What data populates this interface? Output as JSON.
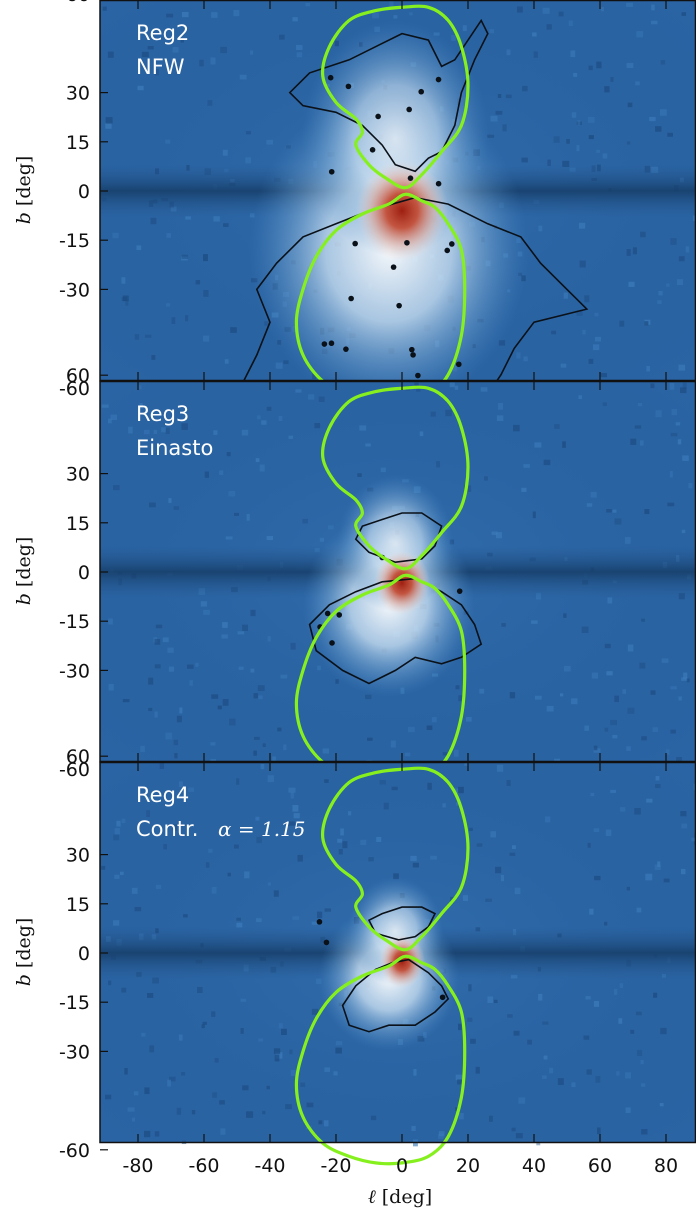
{
  "chart_data": {
    "type": "heatmap",
    "x_axis": {
      "label_italic": "ℓ",
      "label_unit": "[deg]",
      "ticks": [
        -80,
        -60,
        -40,
        -20,
        0,
        20,
        40,
        60,
        80
      ],
      "range": [
        -90,
        90
      ]
    },
    "y_axis": {
      "label_italic": "b",
      "label_unit": "[deg]",
      "ticks": [
        -60,
        -30,
        -15,
        0,
        15,
        30,
        60
      ]
    },
    "colors": {
      "background_map": "#2a64a4",
      "plane_band": "#18426f",
      "excess_core": "#b0301c",
      "excess_halo": "#dcecf8",
      "region_outline": "#86f01e",
      "contour": "#0b1118"
    },
    "panels": [
      {
        "name": "Reg2",
        "profile": "NFW",
        "profile_math": ""
      },
      {
        "name": "Reg3",
        "profile": "Einasto",
        "profile_math": ""
      },
      {
        "name": "Reg4",
        "profile": "Contr.",
        "profile_math": "α = 1.15"
      }
    ],
    "region_outline": {
      "north_lobe": [
        [
          1,
          1
        ],
        [
          6,
          5
        ],
        [
          12,
          12
        ],
        [
          18,
          20
        ],
        [
          20,
          32
        ],
        [
          18,
          44
        ],
        [
          14,
          52
        ],
        [
          8,
          56
        ],
        [
          0,
          56
        ],
        [
          -8,
          55
        ],
        [
          -16,
          52
        ],
        [
          -22,
          44
        ],
        [
          -24,
          35
        ],
        [
          -20,
          27
        ],
        [
          -14,
          22
        ],
        [
          -12,
          18
        ],
        [
          -14,
          14
        ],
        [
          -10,
          8
        ],
        [
          -5,
          4
        ]
      ],
      "south_lobe": [
        [
          1,
          -1
        ],
        [
          6,
          -3
        ],
        [
          10,
          -5
        ],
        [
          14,
          -10
        ],
        [
          18,
          -18
        ],
        [
          19,
          -30
        ],
        [
          18,
          -44
        ],
        [
          14,
          -56
        ],
        [
          8,
          -62
        ],
        [
          0,
          -64
        ],
        [
          -8,
          -64
        ],
        [
          -16,
          -62
        ],
        [
          -24,
          -58
        ],
        [
          -30,
          -50
        ],
        [
          -32,
          -40
        ],
        [
          -30,
          -30
        ],
        [
          -26,
          -20
        ],
        [
          -20,
          -12
        ],
        [
          -12,
          -7
        ],
        [
          -4,
          -4
        ]
      ]
    }
  }
}
